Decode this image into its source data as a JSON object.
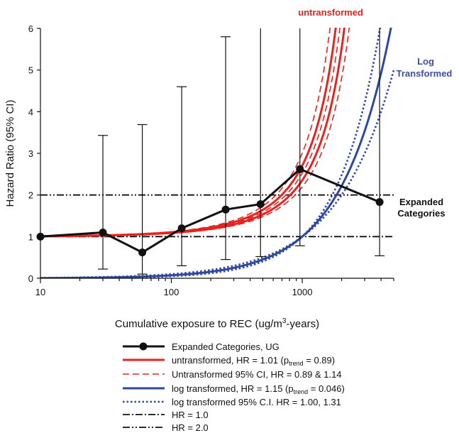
{
  "chart_data": {
    "type": "line",
    "xlabel_pre": "Cumulative exposure to REC (ug/m",
    "xlabel_sup": "3",
    "xlabel_post": "-years)",
    "ylabel": "Hazard Ratio (95% CI)",
    "x_scale": "log",
    "xlim": [
      10,
      5000
    ],
    "ylim": [
      0,
      6
    ],
    "x_ticks": [
      10,
      100,
      1000
    ],
    "x_tick_labels": [
      "10",
      "100",
      "1000"
    ],
    "y_ticks": [
      0,
      1,
      2,
      3,
      4,
      5,
      6
    ],
    "y_tick_labels": [
      "0",
      "1",
      "2",
      "3",
      "4",
      "5",
      "6"
    ],
    "grid": false,
    "legend_position": "bottom",
    "colors": {
      "black": "#111111",
      "red": "#e8231f",
      "blue": "#2e47a1",
      "blue_label": "#3a4ea8"
    },
    "annotations": {
      "untransformed": "untransformed",
      "log_line1": "Log",
      "log_line2": "Transformed",
      "expanded_line1": "Expanded",
      "expanded_line2": "Categories"
    },
    "expanded_categories": {
      "x": [
        10,
        30,
        60,
        120,
        260,
        480,
        960,
        3900
      ],
      "hr": [
        1.0,
        1.1,
        0.62,
        1.2,
        1.65,
        1.78,
        2.62,
        1.83
      ],
      "lower": [
        1.0,
        0.22,
        0.1,
        0.3,
        0.45,
        0.52,
        0.78,
        0.54
      ],
      "upper": [
        1.0,
        3.43,
        3.69,
        4.6,
        5.8,
        6.0,
        6.0,
        6.0
      ]
    },
    "reference_lines": [
      {
        "label": "HR = 1.0",
        "y": 1.0
      },
      {
        "label": "HR = 2.0",
        "y": 2.0
      }
    ],
    "legend": {
      "expanded": "Expanded Categories, UG",
      "untransformed_pre": "untransformed, HR = 1.01 (p",
      "untransformed_sub": "trend",
      "untransformed_post": " = 0.89)",
      "untransformed_ci": "Untransformed 95% CI, HR = 0.89 & 1.14",
      "log_pre": "log transformed, HR = 1.15 (p",
      "log_sub": "trend",
      "log_post": " = 0.046)",
      "log_ci": "log transformed 95% C.I. HR = 1.00, 1.31",
      "hr1": "HR = 1.0",
      "hr2": "HR = 2.0"
    }
  }
}
